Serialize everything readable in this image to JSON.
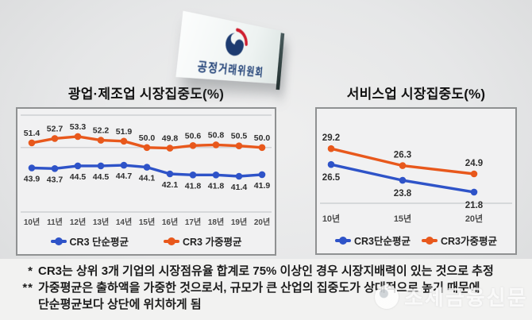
{
  "sign": {
    "org_name": "공정거래위원회"
  },
  "chart_data": [
    {
      "type": "line",
      "title": "광업·제조업 시장집중도(%)",
      "categories": [
        "10년",
        "11년",
        "12년",
        "13년",
        "14년",
        "15년",
        "16년",
        "17년",
        "18년",
        "19년",
        "20년"
      ],
      "series": [
        {
          "name": "CR3 단순평균",
          "color": "#2e53c8",
          "label_side": "below",
          "values": [
            43.9,
            43.7,
            44.5,
            44.5,
            44.7,
            44.1,
            42.1,
            41.8,
            41.8,
            41.4,
            41.9
          ]
        },
        {
          "name": "CR3 가중평균",
          "color": "#e8581c",
          "label_side": "above",
          "values": [
            51.4,
            52.7,
            53.3,
            52.2,
            51.9,
            50.0,
            49.8,
            50.6,
            50.8,
            50.5,
            50.0
          ]
        }
      ],
      "ylim": [
        30.7,
        59.7
      ],
      "gridline_values": [
        59.7,
        50,
        30.7
      ],
      "legend_position": "bottom",
      "grid": "horizontal"
    },
    {
      "type": "line",
      "title": "서비스업 시장집중도(%)",
      "categories": [
        "10년",
        "15년",
        "20년"
      ],
      "series": [
        {
          "name": "CR3단순평균",
          "color": "#2e53c8",
          "label_side": "below",
          "values": [
            26.5,
            23.8,
            21.8
          ]
        },
        {
          "name": "CR3가중평균",
          "color": "#e8581c",
          "label_side": "above",
          "values": [
            29.2,
            26.3,
            24.9
          ]
        }
      ],
      "ylim": [
        19.9,
        34.9
      ],
      "gridline_values": [
        19.9
      ],
      "legend_position": "bottom",
      "grid": "horizontal"
    }
  ],
  "footnotes": {
    "line1": {
      "marker": "*",
      "bold": "CR3는 상위 3개 기업의 시장점유율 합계",
      "rest": "로 75% 이상인 경우 시장지배력이 있는 것으로 추정"
    },
    "line2": {
      "marker": "**",
      "text": "가중평균은 출하액을 가중한 것으로서, 규모가 큰 산업의 집중도가 상대적으로 높기 때문에"
    },
    "line3": {
      "text": "단순평균보다 상단에 위치하게 됨"
    }
  },
  "watermark": {
    "text": "조세금융신문"
  },
  "colors": {
    "blue": "#2e53c8",
    "orange": "#e8581c",
    "navy": "#1d3b70",
    "red": "#cf1e2f"
  }
}
